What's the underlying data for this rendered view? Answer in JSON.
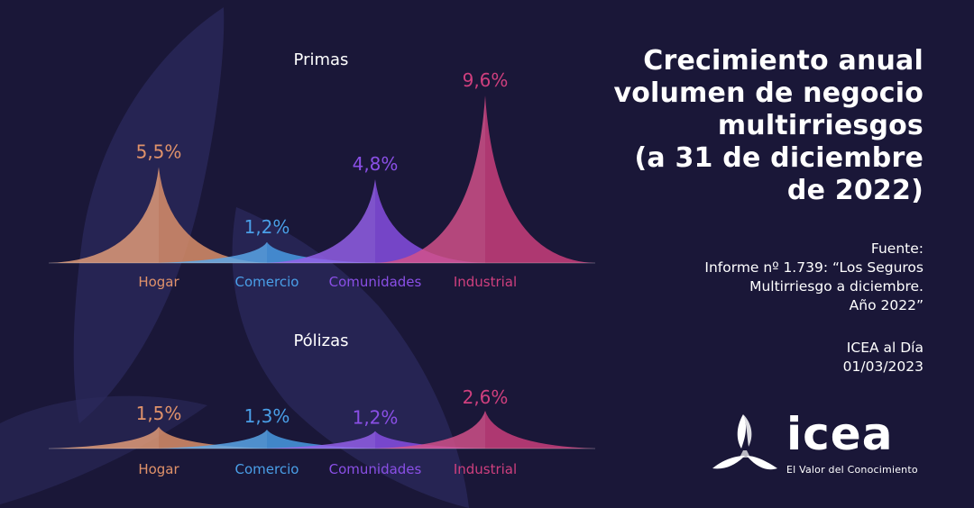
{
  "title_lines": [
    "Crecimiento anual",
    "volumen de negocio",
    "multirriesgos",
    "(a 31 de diciembre",
    "de 2022)"
  ],
  "source": {
    "label": "Fuente:",
    "lines": [
      "Informe nº 1.739: “Los Seguros",
      "Multirriesgo a diciembre.",
      "Año 2022”"
    ]
  },
  "report": {
    "name": "ICEA al Día",
    "date": "01/03/2023"
  },
  "logo": {
    "word": "icea",
    "tagline": "El Valor del Conocimiento",
    "icon": "icea-triskelion-logo"
  },
  "colors": {
    "background": "#1a1738",
    "hogar": "#e0926a",
    "comercio": "#4a9fe8",
    "comunidades": "#8a4fe6",
    "industrial": "#cf3f7e"
  },
  "chart_data": [
    {
      "type": "area",
      "title": "Primas",
      "unit": "%",
      "categories": [
        "Hogar",
        "Comercio",
        "Comunidades",
        "Industrial"
      ],
      "values": [
        5.5,
        1.2,
        4.8,
        9.6
      ],
      "labels": [
        "5,5%",
        "1,2%",
        "4,8%",
        "9,6%"
      ],
      "ylim": [
        0,
        9.6
      ],
      "grid": false,
      "legend": "none"
    },
    {
      "type": "area",
      "title": "Pólizas",
      "unit": "%",
      "categories": [
        "Hogar",
        "Comercio",
        "Comunidades",
        "Industrial"
      ],
      "values": [
        1.5,
        1.3,
        1.2,
        2.6
      ],
      "labels": [
        "1,5%",
        "1,3%",
        "1,2%",
        "2,6%"
      ],
      "ylim": [
        0,
        2.6
      ],
      "grid": false,
      "legend": "none"
    }
  ]
}
